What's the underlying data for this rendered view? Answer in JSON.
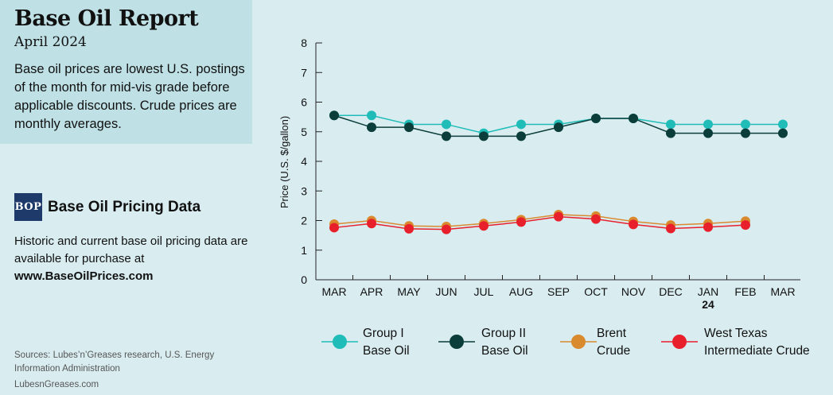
{
  "header": {
    "title": "Base Oil Report",
    "subtitle": "April 2024",
    "description": "Base oil prices are lowest U.S. postings of the month for mid-vis grade before applicable discounts. Crude prices are monthly averages."
  },
  "promo": {
    "logo_text": "BOP",
    "title": "Base Oil Pricing Data",
    "description": "Historic and current base oil pricing data are available for purchase at",
    "url": "www.BaseOilPrices.com"
  },
  "footer": {
    "sources": "Sources: Lubes’n’Greases research, U.S. Energy Information Administration",
    "site": "LubesnGreases.com"
  },
  "colors": {
    "background": "#d9edf1",
    "header_box": "#bfe1e6",
    "group1": "#1fbcb8",
    "group2": "#0b3d3a",
    "brent": "#d98a2f",
    "wti": "#e8202c",
    "logo_bg": "#1e3a6b"
  },
  "chart_data": {
    "type": "line",
    "categories": [
      "MAR",
      "APR",
      "MAY",
      "JUN",
      "JUL",
      "AUG",
      "SEP",
      "OCT",
      "NOV",
      "DEC",
      "JAN",
      "FEB",
      "MAR"
    ],
    "year_marker": {
      "category": "JAN",
      "label": "24"
    },
    "ylabel": "Price (U.S. $/gallon)",
    "ylim": [
      0,
      8
    ],
    "yticks": [
      0,
      1,
      2,
      3,
      4,
      5,
      6,
      7,
      8
    ],
    "series": [
      {
        "name": "Group I\nBase Oil",
        "key": "group1",
        "values": [
          5.55,
          5.55,
          5.25,
          5.25,
          4.95,
          5.25,
          5.25,
          5.45,
          5.45,
          5.25,
          5.25,
          5.25,
          5.25
        ]
      },
      {
        "name": "Group II\nBase Oil",
        "key": "group2",
        "values": [
          5.55,
          5.15,
          5.15,
          4.85,
          4.85,
          4.85,
          5.15,
          5.45,
          5.45,
          4.95,
          4.95,
          4.95,
          4.95
        ]
      },
      {
        "name": "Brent\nCrude",
        "key": "brent",
        "values": [
          1.88,
          2.0,
          1.82,
          1.8,
          1.9,
          2.03,
          2.2,
          2.15,
          1.97,
          1.85,
          1.9,
          1.98,
          null
        ]
      },
      {
        "name": "West Texas\nIntermediate Crude",
        "key": "wti",
        "values": [
          1.76,
          1.9,
          1.72,
          1.7,
          1.82,
          1.95,
          2.13,
          2.05,
          1.87,
          1.73,
          1.78,
          1.85,
          null
        ]
      }
    ],
    "grid": false,
    "legend_position": "bottom"
  }
}
